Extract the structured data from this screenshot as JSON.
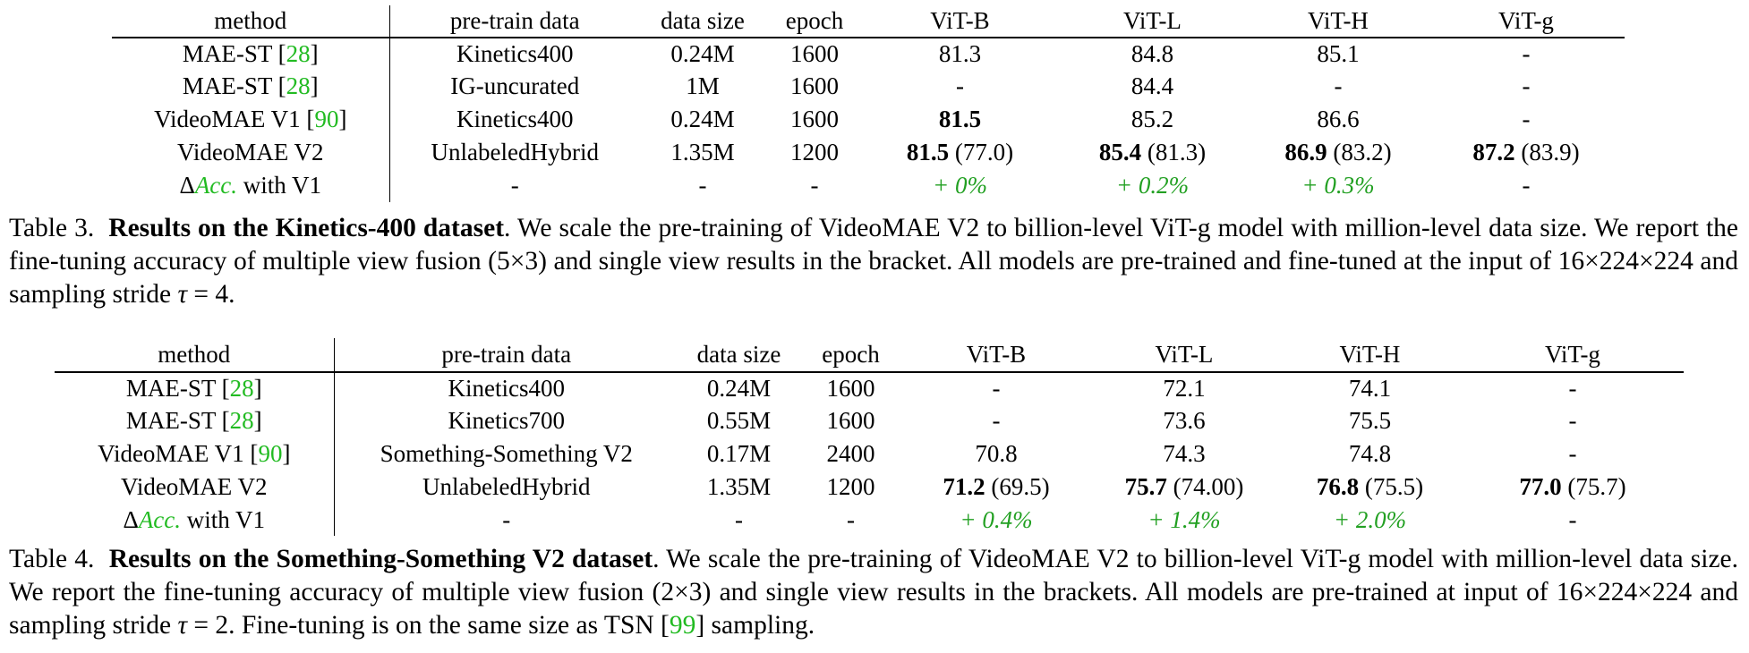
{
  "table3": {
    "headers": [
      "method",
      "pre-train data",
      "data size",
      "epoch",
      "ViT-B",
      "ViT-L",
      "ViT-H",
      "ViT-g"
    ],
    "rows": [
      {
        "method": "MAE-ST [",
        "ref": "28",
        "method_end": "]",
        "data": "Kinetics400",
        "size": "0.24M",
        "epoch": "1600",
        "b": "81.3",
        "l": "84.8",
        "h": "85.1",
        "g": "-"
      },
      {
        "method": "MAE-ST [",
        "ref": "28",
        "method_end": "]",
        "data": "IG-uncurated",
        "size": "1M",
        "epoch": "1600",
        "b": "-",
        "l": "84.4",
        "h": "-",
        "g": "-"
      },
      {
        "method": "VideoMAE V1 [",
        "ref": "90",
        "method_end": "]",
        "data": "Kinetics400",
        "size": "0.24M",
        "epoch": "1600",
        "b_bold": "81.5",
        "l": "85.2",
        "h": "86.6",
        "g": "-"
      }
    ],
    "v2": {
      "method": "VideoMAE V2",
      "data": "UnlabeledHybrid",
      "size": "1.35M",
      "epoch": "1200",
      "b": "81.5",
      "b_sv": "(77.0)",
      "l": "85.4",
      "l_sv": "(81.3)",
      "h": "86.9",
      "h_sv": "(83.2)",
      "g": "87.2",
      "g_sv": "(83.9)"
    },
    "delta": {
      "symbol": "Δ",
      "acc": "Acc.",
      "suffix": " with V1",
      "data": "-",
      "size": "-",
      "epoch": "-",
      "b": "+ 0%",
      "l": "+ 0.2%",
      "h": "+ 0.3%",
      "g": "-"
    },
    "caption_label": "Table 3.",
    "caption_title": "Results on the Kinetics-400 dataset",
    "caption_p1": ". We scale the pre-training of VideoMAE V2 to billion-level ViT-g model with million-level data size. We report the fine-tuning accuracy of multiple view fusion (5×3) and single view results in the bracket. All models are pre-trained and fine-tuned at the input of 16×224×224 and sampling stride ",
    "caption_tau": "τ",
    "caption_end": " = 4."
  },
  "table4": {
    "headers": [
      "method",
      "pre-train data",
      "data size",
      "epoch",
      "ViT-B",
      "ViT-L",
      "ViT-H",
      "ViT-g"
    ],
    "rows": [
      {
        "method": "MAE-ST [",
        "ref": "28",
        "method_end": "]",
        "data": "Kinetics400",
        "size": "0.24M",
        "epoch": "1600",
        "b": "-",
        "l": "72.1",
        "h": "74.1",
        "g": "-"
      },
      {
        "method": "MAE-ST [",
        "ref": "28",
        "method_end": "]",
        "data": "Kinetics700",
        "size": "0.55M",
        "epoch": "1600",
        "b": "-",
        "l": "73.6",
        "h": "75.5",
        "g": "-"
      },
      {
        "method": "VideoMAE V1 [",
        "ref": "90",
        "method_end": "]",
        "data": "Something-Something V2",
        "size": "0.17M",
        "epoch": "2400",
        "b": "70.8",
        "l": "74.3",
        "h": "74.8",
        "g": "-"
      }
    ],
    "v2": {
      "method": "VideoMAE V2",
      "data": "UnlabeledHybrid",
      "size": "1.35M",
      "epoch": "1200",
      "b": "71.2",
      "b_sv": "(69.5)",
      "l": "75.7",
      "l_sv": "(74.00)",
      "h": "76.8",
      "h_sv": "(75.5)",
      "g": "77.0",
      "g_sv": "(75.7)"
    },
    "delta": {
      "symbol": "Δ",
      "acc": "Acc.",
      "suffix": " with V1",
      "data": "-",
      "size": "-",
      "epoch": "-",
      "b": "+ 0.4%",
      "l": "+ 1.4%",
      "h": "+ 2.0%",
      "g": "-"
    },
    "caption_label": "Table 4.",
    "caption_title": "Results on the Something-Something V2 dataset",
    "caption_p1": ". We scale the pre-training of VideoMAE V2 to billion-level ViT-g model with million-level data size. We report the fine-tuning accuracy of multiple view fusion (2×3) and single view results in the brackets. All models are pre-trained at input of 16×224×224 and sampling stride ",
    "caption_tau": "τ",
    "caption_mid": " = 2. Fine-tuning is on the same size as TSN [",
    "caption_ref": "99",
    "caption_end": "] sampling."
  },
  "colors": {
    "reference_link": "#22bb22",
    "delta_value": "#22a022"
  }
}
